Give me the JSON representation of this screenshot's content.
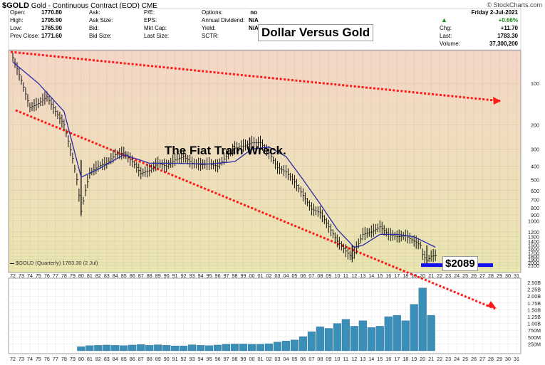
{
  "header": {
    "symbol": "$GOLD",
    "description": "Gold - Continuous Contract (EOD)",
    "exchange": "CME",
    "brand": "© StockCharts.com"
  },
  "quote_left": [
    {
      "label": "Open:",
      "value": "1770.80"
    },
    {
      "label": "High:",
      "value": "1795.90"
    },
    {
      "label": "Low:",
      "value": "1765.90"
    },
    {
      "label": "Prev Close:",
      "value": "1771.60"
    }
  ],
  "quote_mid": [
    "Ask:",
    "Ask Size:",
    "Bid:",
    "Bid Size:"
  ],
  "quote_mid2": [
    "P/E:",
    "EPS:",
    "Mkt Cap:",
    "Last Size:"
  ],
  "quote_mid3": [
    {
      "label": "Options:",
      "value": "no"
    },
    {
      "label": "Annual Dividend:",
      "value": "N/A"
    },
    {
      "label": "Yield:",
      "value": "N/A"
    },
    {
      "label": "SCTR:",
      "value": ""
    }
  ],
  "quote_right": {
    "date": "Friday  2-Jul-2021",
    "chg_pct": "+0.66%",
    "chg_label": "Chg:",
    "chg": "+11.70",
    "last_label": "Last:",
    "last": "1783.30",
    "volume_label": "Volume:",
    "volume": "37,300,200"
  },
  "annotations": {
    "title_box": "Dollar Versus Gold",
    "wreck": "The Fiat Train Wreck.",
    "price_box": "$2089"
  },
  "legend": "$GOLD (Quarterly) 1783.30 (2 Jul)",
  "colors": {
    "bg_top": "#f4d6c8",
    "bg_bottom": "#e9e6b0",
    "bars": "#111111",
    "ma_line": "#2b2ba8",
    "trend": "#ff1a1a",
    "volume": "#3a8fb8",
    "level_line": "#1010ee"
  },
  "chart_data": [
    {
      "type": "line",
      "title": "$GOLD (Quarterly) 1783.30 (2 Jul)",
      "scale": "inverted-log",
      "x_ticks": [
        "72",
        "73",
        "74",
        "75",
        "76",
        "77",
        "78",
        "79",
        "80",
        "81",
        "82",
        "83",
        "84",
        "85",
        "86",
        "87",
        "88",
        "89",
        "90",
        "91",
        "92",
        "93",
        "94",
        "95",
        "96",
        "97",
        "98",
        "99",
        "00",
        "01",
        "02",
        "03",
        "04",
        "05",
        "06",
        "07",
        "08",
        "09",
        "10",
        "11",
        "12",
        "13",
        "14",
        "15",
        "16",
        "17",
        "18",
        "19",
        "20",
        "21",
        "22",
        "23",
        "24",
        "25",
        "26",
        "27",
        "28",
        "29",
        "30",
        "31"
      ],
      "y_ticks": [
        100,
        200,
        300,
        400,
        500,
        600,
        700,
        800,
        900,
        1000,
        1200,
        1300,
        1400,
        1500,
        1600,
        1700,
        1800,
        1900,
        2000,
        2100
      ],
      "ylim": [
        65,
        2150
      ],
      "series": [
        {
          "name": "$GOLD",
          "x": [
            1972,
            1973,
            1974,
            1975,
            1976,
            1977,
            1978,
            1979,
            1979.5,
            1980,
            1980.5,
            1981,
            1982,
            1983,
            1984,
            1985,
            1986,
            1987,
            1988,
            1989,
            1990,
            1991,
            1992,
            1993,
            1994,
            1995,
            1996,
            1997,
            1998,
            1999,
            2000,
            2001,
            2002,
            2003,
            2004,
            2005,
            2006,
            2007,
            2008,
            2009,
            2010,
            2011,
            2011.75,
            2012,
            2013,
            2014,
            2015,
            2016,
            2017,
            2018,
            2019,
            2019.75,
            2020,
            2020.5,
            2021,
            2021.5
          ],
          "y": [
            65,
            95,
            150,
            140,
            125,
            160,
            200,
            350,
            500,
            850,
            600,
            450,
            400,
            380,
            330,
            320,
            370,
            450,
            430,
            380,
            400,
            360,
            340,
            380,
            390,
            385,
            400,
            340,
            295,
            285,
            270,
            270,
            320,
            410,
            440,
            520,
            650,
            820,
            870,
            1100,
            1400,
            1650,
            1850,
            1700,
            1250,
            1200,
            1100,
            1250,
            1300,
            1280,
            1400,
            1500,
            1750,
            1950,
            1800,
            1783.3
          ]
        },
        {
          "name": "Moving Average",
          "x": [
            1972,
            1975,
            1978,
            1980,
            1982,
            1985,
            1988,
            1990,
            1995,
            1998,
            2000,
            2002,
            2004,
            2006,
            2008,
            2010,
            2012,
            2013,
            2015,
            2017,
            2019,
            2021.5
          ],
          "y": [
            70,
            100,
            160,
            480,
            420,
            330,
            380,
            380,
            385,
            370,
            300,
            290,
            340,
            500,
            750,
            1150,
            1550,
            1500,
            1250,
            1250,
            1300,
            1550
          ]
        }
      ]
    },
    {
      "type": "bar",
      "title": "Volume",
      "y_ticks": [
        "2.50B",
        "2.25B",
        "2.00B",
        "1.75B",
        "1.50B",
        "1.25B",
        "1.00B",
        "750M",
        "500M",
        "250M"
      ],
      "ylim": [
        0,
        2500000000
      ],
      "x": [
        1980,
        1981,
        1982,
        1983,
        1984,
        1985,
        1986,
        1987,
        1988,
        1989,
        1990,
        1991,
        1992,
        1993,
        1994,
        1995,
        1996,
        1997,
        1998,
        1999,
        2000,
        2001,
        2002,
        2003,
        2004,
        2005,
        2006,
        2007,
        2008,
        2009,
        2010,
        2011,
        2012,
        2013,
        2014,
        2015,
        2016,
        2017,
        2018,
        2019,
        2020,
        2021
      ],
      "values": [
        150000000,
        190000000,
        200000000,
        210000000,
        200000000,
        190000000,
        210000000,
        230000000,
        200000000,
        220000000,
        200000000,
        180000000,
        180000000,
        220000000,
        200000000,
        190000000,
        210000000,
        240000000,
        250000000,
        250000000,
        240000000,
        240000000,
        260000000,
        320000000,
        360000000,
        400000000,
        520000000,
        700000000,
        880000000,
        820000000,
        1000000000,
        1150000000,
        900000000,
        1100000000,
        850000000,
        900000000,
        1250000000,
        1300000000,
        1100000000,
        1700000000,
        2300000000,
        1300000000
      ]
    }
  ]
}
